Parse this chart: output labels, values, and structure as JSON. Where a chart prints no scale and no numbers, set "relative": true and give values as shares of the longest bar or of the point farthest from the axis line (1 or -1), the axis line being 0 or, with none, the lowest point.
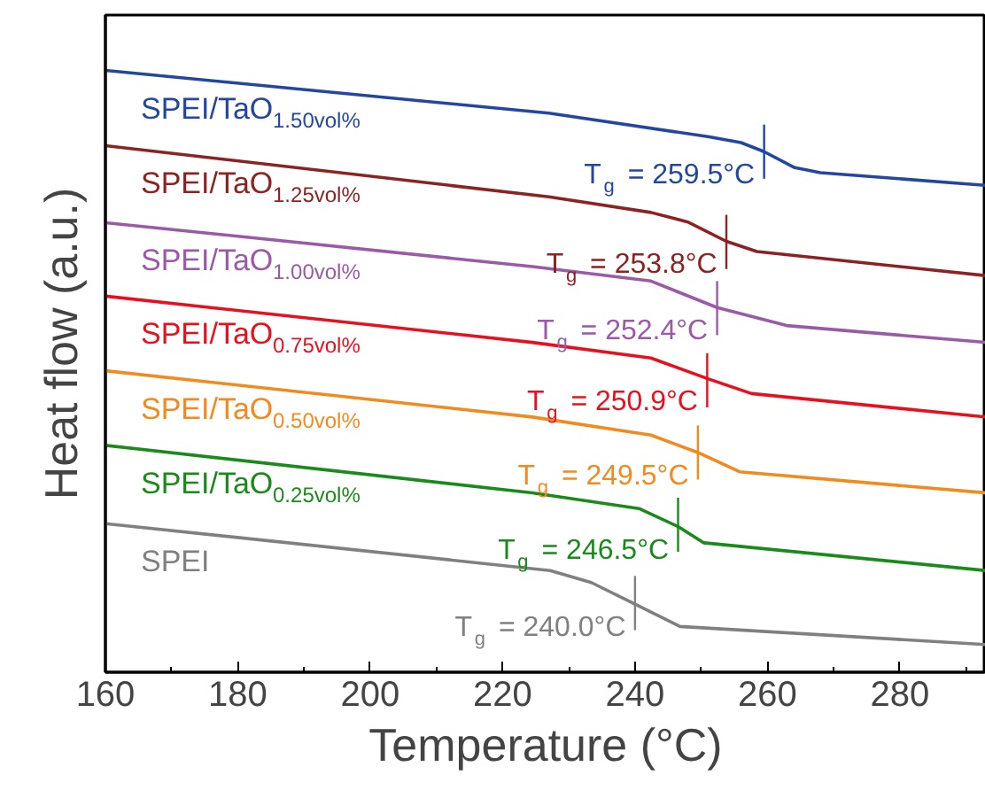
{
  "chart_data": {
    "type": "line",
    "relative": true,
    "xlabel": "Temperature (°C)",
    "ylabel": "Heat flow (a.u.)",
    "xlim": [
      160,
      293
    ],
    "xticks": [
      160,
      180,
      200,
      220,
      240,
      260,
      280
    ],
    "grid": false,
    "line_style": "solid",
    "marker": "none",
    "series": [
      {
        "name": "SPEI/TaO$_{1.50vol%}$",
        "color": "#2347a0",
        "x": [
          160,
          227,
          251,
          256,
          259.5,
          264,
          268,
          293
        ],
        "values": [
          1.0,
          0.929,
          0.89,
          0.88,
          0.865,
          0.839,
          0.83,
          0.809
        ]
      },
      {
        "name": "SPEI/TaO$_{1.25vol%}$",
        "color": "#8b2323",
        "x": [
          160,
          227,
          242.4,
          248,
          253.8,
          258.4,
          293
        ],
        "values": [
          0.875,
          0.79,
          0.764,
          0.748,
          0.716,
          0.699,
          0.659
        ]
      },
      {
        "name": "SPEI/TaO$_{1.00vol%}$",
        "color": "#9a5aa8",
        "x": [
          160,
          224.5,
          242.4,
          252.4,
          262.9,
          293
        ],
        "values": [
          0.747,
          0.674,
          0.65,
          0.606,
          0.576,
          0.548
        ]
      },
      {
        "name": "SPEI/TaO$_{0.75vol%}$",
        "color": "#e8101e",
        "x": [
          160,
          224.5,
          242.4,
          250.9,
          257.6,
          293
        ],
        "values": [
          0.625,
          0.548,
          0.522,
          0.488,
          0.463,
          0.424
        ]
      },
      {
        "name": "SPEI/TaO$_{0.50vol%}$",
        "color": "#f28a1e",
        "x": [
          160,
          224.5,
          242.4,
          249.5,
          255.8,
          293
        ],
        "values": [
          0.501,
          0.424,
          0.394,
          0.365,
          0.333,
          0.298
        ]
      },
      {
        "name": "SPEI/TaO$_{0.25vol%}$",
        "color": "#1a8a1a",
        "x": [
          160,
          224.5,
          240.6,
          246.5,
          250.4,
          293
        ],
        "values": [
          0.377,
          0.298,
          0.272,
          0.242,
          0.215,
          0.169
        ]
      },
      {
        "name": "SPEI",
        "color": "#808080",
        "x": [
          160,
          227.2,
          233.4,
          240,
          246.8,
          293
        ],
        "values": [
          0.247,
          0.169,
          0.149,
          0.113,
          0.076,
          0.046
        ]
      },
      {
        "color": "#2347a0",
        "x": [
          259.5,
          259.5
        ],
        "values": [
          0.82,
          0.91
        ]
      },
      {
        "color": "#8b2323",
        "x": [
          253.8,
          253.8
        ],
        "values": [
          0.67,
          0.76
        ]
      },
      {
        "color": "#9a5aa8",
        "x": [
          252.4,
          252.4
        ],
        "values": [
          0.56,
          0.65
        ]
      },
      {
        "color": "#e8101e",
        "x": [
          250.9,
          250.9
        ],
        "values": [
          0.44,
          0.53
        ]
      },
      {
        "color": "#f28a1e",
        "x": [
          249.5,
          249.5
        ],
        "values": [
          0.32,
          0.41
        ]
      },
      {
        "color": "#1a8a1a",
        "x": [
          246.5,
          246.5
        ],
        "values": [
          0.2,
          0.29
        ]
      },
      {
        "color": "#808080",
        "x": [
          240.0,
          240.0
        ],
        "values": [
          0.07,
          0.16
        ]
      }
    ],
    "annotations": [
      {
        "text": "T$_{g}$ = 259.5°C",
        "x": 259.5,
        "y": 0.865
      },
      {
        "text": "T$_{g}$ = 253.8°C",
        "x": 253.8,
        "y": 0.716
      },
      {
        "text": "T$_{g}$ = 252.4°C",
        "x": 252.4,
        "y": 0.606
      },
      {
        "text": "T$_{g}$ = 250.9°C",
        "x": 250.9,
        "y": 0.488
      },
      {
        "text": "T$_{g}$ = 249.5°C",
        "x": 249.5,
        "y": 0.365
      },
      {
        "text": "T$_{g}$ = 246.5°C",
        "x": 246.5,
        "y": 0.242
      },
      {
        "text": "T$_{g}$ = 240.0°C",
        "x": 240.0,
        "y": 0.113
      }
    ]
  }
}
